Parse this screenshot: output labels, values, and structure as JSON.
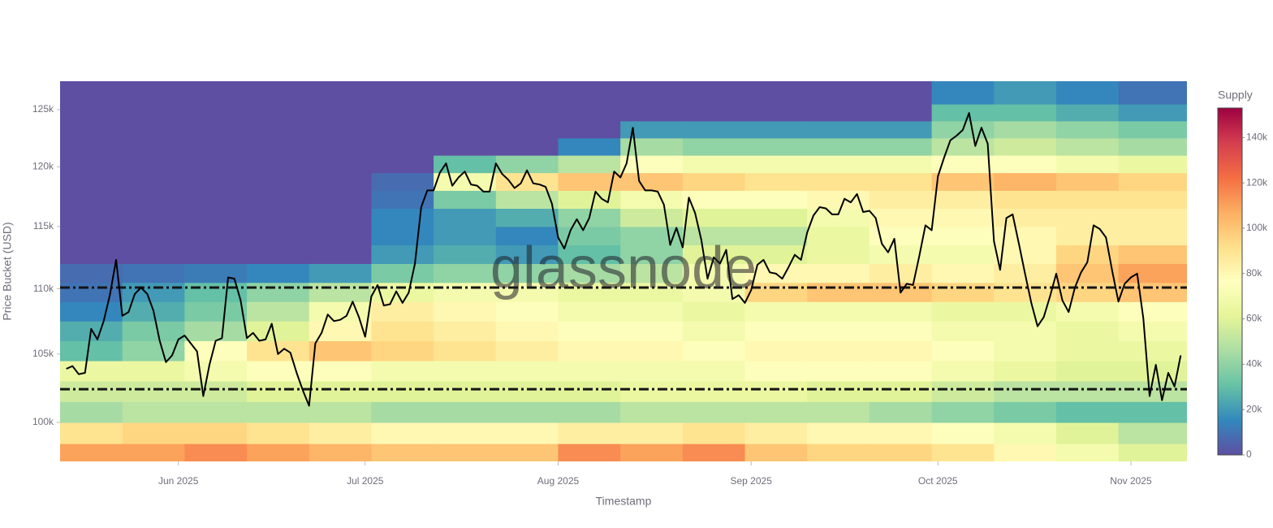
{
  "chart_data": {
    "type": "heatmap",
    "xlabel": "Timestamp",
    "ylabel": "Price Bucket (USD)",
    "colorbar_title": "Supply",
    "watermark": "glassnode",
    "xlim": [
      "2025-05-13",
      "2025-11-10"
    ],
    "xticks": [
      {
        "value": "2025-06-01",
        "label": "Jun 2025"
      },
      {
        "value": "2025-07-01",
        "label": "Jul 2025"
      },
      {
        "value": "2025-08-01",
        "label": "Aug 2025"
      },
      {
        "value": "2025-09-01",
        "label": "Sep 2025"
      },
      {
        "value": "2025-10-01",
        "label": "Oct 2025"
      },
      {
        "value": "2025-11-01",
        "label": "Nov 2025"
      }
    ],
    "ylim": [
      97260,
      127560
    ],
    "ylog": true,
    "yticks": [
      {
        "value": 100000,
        "label": "100k"
      },
      {
        "value": 105000,
        "label": "105k"
      },
      {
        "value": 110000,
        "label": "110k"
      },
      {
        "value": 115000,
        "label": "115k"
      },
      {
        "value": 120000,
        "label": "120k"
      },
      {
        "value": 125000,
        "label": "125k"
      }
    ],
    "xbins": [
      "2025-05-13",
      "2025-05-23",
      "2025-06-02",
      "2025-06-12",
      "2025-06-22",
      "2025-07-02",
      "2025-07-12",
      "2025-07-22",
      "2025-08-01",
      "2025-08-11",
      "2025-08-21",
      "2025-08-31",
      "2025-09-10",
      "2025-09-20",
      "2025-09-30",
      "2025-10-10",
      "2025-10-20",
      "2025-10-30",
      "2025-11-10"
    ],
    "ybins": [
      97000,
      98500,
      100000,
      101500,
      103000,
      104500,
      106000,
      107500,
      109000,
      110500,
      112000,
      113500,
      115000,
      116500,
      118000,
      119500,
      121000,
      122500,
      124000,
      125500,
      127600
    ],
    "z": [
      [
        110000,
        90000,
        45000,
        55000,
        65000,
        30000,
        25000,
        15000,
        10000,
        8000,
        0,
        0,
        0,
        0,
        0,
        0,
        0,
        0,
        0,
        0
      ],
      [
        110000,
        95000,
        50000,
        55000,
        65000,
        40000,
        35000,
        25000,
        20000,
        10000,
        0,
        0,
        0,
        0,
        0,
        0,
        0,
        0,
        0,
        0
      ],
      [
        115000,
        95000,
        50000,
        55000,
        70000,
        75000,
        45000,
        35000,
        30000,
        12000,
        0,
        0,
        0,
        0,
        0,
        0,
        0,
        0,
        0,
        0
      ],
      [
        110000,
        90000,
        50000,
        60000,
        75000,
        90000,
        60000,
        50000,
        40000,
        15000,
        0,
        0,
        0,
        0,
        0,
        0,
        0,
        0,
        0,
        0
      ],
      [
        105000,
        85000,
        50000,
        60000,
        75000,
        100000,
        80000,
        70000,
        50000,
        20000,
        0,
        0,
        0,
        0,
        0,
        0,
        0,
        0,
        0,
        0
      ],
      [
        100000,
        80000,
        45000,
        60000,
        70000,
        95000,
        90000,
        85000,
        65000,
        35000,
        20000,
        15000,
        15000,
        10000,
        8000,
        0,
        0,
        0,
        0,
        0
      ],
      [
        100000,
        80000,
        45000,
        60000,
        70000,
        90000,
        85000,
        80000,
        70000,
        40000,
        25000,
        20000,
        20000,
        35000,
        70000,
        30000,
        0,
        0,
        0,
        0
      ],
      [
        100000,
        80000,
        45000,
        60000,
        70000,
        85000,
        80000,
        75000,
        70000,
        40000,
        20000,
        15000,
        25000,
        50000,
        90000,
        40000,
        0,
        0,
        0,
        0
      ],
      [
        115000,
        85000,
        45000,
        60000,
        70000,
        80000,
        75000,
        70000,
        65000,
        45000,
        30000,
        35000,
        40000,
        60000,
        100000,
        50000,
        15000,
        0,
        0,
        0
      ],
      [
        110000,
        85000,
        50000,
        65000,
        70000,
        80000,
        75000,
        70000,
        65000,
        50000,
        40000,
        40000,
        55000,
        70000,
        100000,
        75000,
        45000,
        20000,
        0,
        0
      ],
      [
        115000,
        90000,
        50000,
        65000,
        70000,
        75000,
        70000,
        65000,
        70000,
        70000,
        60000,
        50000,
        60000,
        75000,
        95000,
        70000,
        40000,
        20000,
        0,
        0
      ],
      [
        100000,
        85000,
        50000,
        65000,
        75000,
        80000,
        75000,
        70000,
        95000,
        80000,
        60000,
        50000,
        60000,
        75000,
        90000,
        70000,
        40000,
        20000,
        0,
        0
      ],
      [
        95000,
        80000,
        50000,
        60000,
        75000,
        80000,
        75000,
        70000,
        100000,
        80000,
        65000,
        65000,
        70000,
        80000,
        90000,
        70000,
        40000,
        20000,
        0,
        0
      ],
      [
        95000,
        80000,
        45000,
        60000,
        75000,
        80000,
        75000,
        70000,
        100000,
        85000,
        70000,
        75000,
        80000,
        85000,
        90000,
        70000,
        40000,
        20000,
        0,
        0
      ],
      [
        90000,
        75000,
        40000,
        55000,
        70000,
        75000,
        70000,
        65000,
        95000,
        80000,
        70000,
        75000,
        80000,
        85000,
        100000,
        75000,
        50000,
        40000,
        30000,
        15000
      ],
      [
        80000,
        70000,
        35000,
        50000,
        65000,
        70000,
        70000,
        65000,
        90000,
        85000,
        80000,
        80000,
        85000,
        90000,
        105000,
        75000,
        55000,
        45000,
        30000,
        20000
      ],
      [
        70000,
        60000,
        30000,
        50000,
        60000,
        65000,
        65000,
        70000,
        95000,
        100000,
        95000,
        85000,
        85000,
        90000,
        100000,
        70000,
        50000,
        40000,
        25000,
        15000
      ],
      [
        60000,
        50000,
        30000,
        50000,
        60000,
        65000,
        70000,
        75000,
        100000,
        110000,
        100000,
        85000,
        85000,
        90000,
        95000,
        65000,
        45000,
        35000,
        20000,
        10000
      ]
    ],
    "colorscale": [
      "#5e4fa2",
      "#3288bd",
      "#66c2a5",
      "#abdda4",
      "#e6f598",
      "#ffffbf",
      "#fee08b",
      "#fdae61",
      "#f46d43",
      "#d53e4f",
      "#9e0142"
    ],
    "clim": [
      0,
      153000
    ],
    "cticks": [
      0,
      {
        "value": 20000,
        "label": "20k"
      },
      {
        "value": 40000,
        "label": "40k"
      },
      {
        "value": 60000,
        "label": "60k"
      },
      {
        "value": 80000,
        "label": "80k"
      },
      {
        "value": 100000,
        "label": "100k"
      },
      {
        "value": 120000,
        "label": "120k"
      },
      {
        "value": 140000,
        "label": "140k"
      }
    ],
    "hlines": [
      110100,
      102400
    ],
    "hline_color": "#151515",
    "series": [
      {
        "type": "line",
        "color": "#000000",
        "x": [
          "2025-05-14",
          "2025-05-15",
          "2025-05-16",
          "2025-05-17",
          "2025-05-18",
          "2025-05-19",
          "2025-05-20",
          "2025-05-21",
          "2025-05-22",
          "2025-05-23",
          "2025-05-24",
          "2025-05-25",
          "2025-05-26",
          "2025-05-27",
          "2025-05-28",
          "2025-05-29",
          "2025-05-30",
          "2025-05-31",
          "2025-06-01",
          "2025-06-02",
          "2025-06-03",
          "2025-06-04",
          "2025-06-05",
          "2025-06-06",
          "2025-06-07",
          "2025-06-08",
          "2025-06-09",
          "2025-06-10",
          "2025-06-11",
          "2025-06-12",
          "2025-06-13",
          "2025-06-14",
          "2025-06-15",
          "2025-06-16",
          "2025-06-17",
          "2025-06-18",
          "2025-06-19",
          "2025-06-20",
          "2025-06-21",
          "2025-06-22",
          "2025-06-23",
          "2025-06-24",
          "2025-06-25",
          "2025-06-26",
          "2025-06-27",
          "2025-06-28",
          "2025-06-29",
          "2025-06-30",
          "2025-07-01",
          "2025-07-02",
          "2025-07-03",
          "2025-07-04",
          "2025-07-05",
          "2025-07-06",
          "2025-07-07",
          "2025-07-08",
          "2025-07-09",
          "2025-07-10",
          "2025-07-11",
          "2025-07-12",
          "2025-07-13",
          "2025-07-14",
          "2025-07-15",
          "2025-07-16",
          "2025-07-17",
          "2025-07-18",
          "2025-07-19",
          "2025-07-20",
          "2025-07-21",
          "2025-07-22",
          "2025-07-23",
          "2025-07-24",
          "2025-07-25",
          "2025-07-26",
          "2025-07-27",
          "2025-07-28",
          "2025-07-29",
          "2025-07-30",
          "2025-07-31",
          "2025-08-01",
          "2025-08-02",
          "2025-08-03",
          "2025-08-04",
          "2025-08-05",
          "2025-08-06",
          "2025-08-07",
          "2025-08-08",
          "2025-08-09",
          "2025-08-10",
          "2025-08-11",
          "2025-08-12",
          "2025-08-13",
          "2025-08-14",
          "2025-08-15",
          "2025-08-16",
          "2025-08-17",
          "2025-08-18",
          "2025-08-19",
          "2025-08-20",
          "2025-08-21",
          "2025-08-22",
          "2025-08-23",
          "2025-08-24",
          "2025-08-25",
          "2025-08-26",
          "2025-08-27",
          "2025-08-28",
          "2025-08-29",
          "2025-08-30",
          "2025-08-31",
          "2025-09-01",
          "2025-09-02",
          "2025-09-03",
          "2025-09-04",
          "2025-09-05",
          "2025-09-06",
          "2025-09-07",
          "2025-09-08",
          "2025-09-09",
          "2025-09-10",
          "2025-09-11",
          "2025-09-12",
          "2025-09-13",
          "2025-09-14",
          "2025-09-15",
          "2025-09-16",
          "2025-09-17",
          "2025-09-18",
          "2025-09-19",
          "2025-09-20",
          "2025-09-21",
          "2025-09-22",
          "2025-09-23",
          "2025-09-24",
          "2025-09-25",
          "2025-09-26",
          "2025-09-27",
          "2025-09-28",
          "2025-09-29",
          "2025-09-30",
          "2025-10-01",
          "2025-10-02",
          "2025-10-03",
          "2025-10-04",
          "2025-10-05",
          "2025-10-06",
          "2025-10-07",
          "2025-10-08",
          "2025-10-09",
          "2025-10-10",
          "2025-10-11",
          "2025-10-12",
          "2025-10-13",
          "2025-10-14",
          "2025-10-15",
          "2025-10-16",
          "2025-10-17",
          "2025-10-18",
          "2025-10-19",
          "2025-10-20",
          "2025-10-21",
          "2025-10-22",
          "2025-10-23",
          "2025-10-24",
          "2025-10-25",
          "2025-10-26",
          "2025-10-27",
          "2025-10-28",
          "2025-10-29",
          "2025-10-30",
          "2025-10-31",
          "2025-11-01",
          "2025-11-02",
          "2025-11-03",
          "2025-11-04",
          "2025-11-05",
          "2025-11-06",
          "2025-11-07",
          "2025-11-08",
          "2025-11-09"
        ],
        "values": [
          103900,
          104100,
          103500,
          103600,
          106900,
          106100,
          107500,
          109500,
          112300,
          107900,
          108200,
          109600,
          110100,
          109600,
          108300,
          106000,
          104400,
          104900,
          106100,
          106400,
          105800,
          105200,
          101900,
          104200,
          106000,
          106200,
          110900,
          110800,
          109100,
          106200,
          106600,
          106000,
          106100,
          107300,
          105000,
          105400,
          105100,
          103600,
          102300,
          101200,
          105800,
          106600,
          108000,
          107500,
          107600,
          107900,
          109000,
          107800,
          106300,
          109400,
          110300,
          108700,
          108800,
          109800,
          108900,
          109700,
          112000,
          116600,
          118000,
          118000,
          119500,
          120300,
          118400,
          119100,
          119600,
          118500,
          118400,
          117900,
          117900,
          120300,
          119400,
          118900,
          118200,
          118600,
          119700,
          118600,
          118500,
          118300,
          116900,
          114100,
          113200,
          114700,
          115600,
          114700,
          115700,
          117900,
          117300,
          117000,
          119600,
          119100,
          120300,
          123400,
          118800,
          118000,
          118000,
          117900,
          116800,
          113500,
          114900,
          113300,
          117400,
          116100,
          113900,
          110800,
          112500,
          112000,
          113100,
          109200,
          109500,
          108900,
          109900,
          111900,
          112300,
          111300,
          111200,
          110800,
          111700,
          112700,
          112300,
          114500,
          115900,
          116600,
          116500,
          116000,
          116000,
          117300,
          117000,
          117700,
          116200,
          116300,
          115700,
          113600,
          112900,
          114000,
          109700,
          110400,
          110300,
          112600,
          115100,
          114700,
          119200,
          120800,
          122300,
          122700,
          123200,
          124700,
          121800,
          123400,
          122000,
          113800,
          111500,
          115700,
          116000,
          113600,
          111200,
          108900,
          107100,
          107800,
          109400,
          111200,
          109100,
          108200,
          110100,
          111300,
          112100,
          115100,
          114800,
          114100,
          111400,
          109000,
          110400,
          110900,
          111200,
          107700,
          101900,
          104200,
          101600,
          103600,
          102600,
          104900
        ]
      }
    ]
  }
}
